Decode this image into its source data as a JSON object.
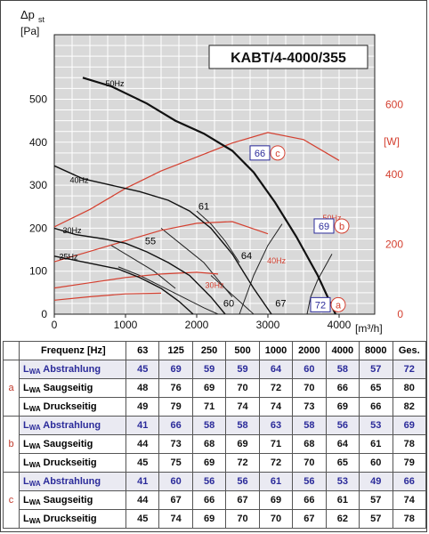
{
  "chart_data": {
    "type": "line",
    "title": "KABT/4-4000/355",
    "ylabel_left": "Δp",
    "ylabel_left_sub": "st",
    "ylabel_left_unit": "[Pa]",
    "ylabel_right_unit": "[W]",
    "xlabel_unit": "[m³/h]",
    "xlim": [
      0,
      4500
    ],
    "ylim_left": [
      0,
      650
    ],
    "ylim_right": [
      0,
      800
    ],
    "x_ticks": [
      "0",
      "1000",
      "2000",
      "3000",
      "4000"
    ],
    "y_ticks_left": [
      "0",
      "100",
      "200",
      "300",
      "400",
      "500"
    ],
    "y_ticks_right": [
      "0",
      "200",
      "400",
      "600"
    ],
    "grid": true,
    "pressure_series": [
      {
        "name": "50Hz",
        "x": [
          400,
          800,
          1300,
          1700,
          2100,
          2500,
          2800,
          3100,
          3400,
          3700,
          3950
        ],
        "y": [
          550,
          530,
          490,
          450,
          420,
          380,
          330,
          260,
          180,
          90,
          0
        ]
      },
      {
        "name": "40Hz",
        "x": [
          0,
          400,
          800,
          1200,
          1600,
          1900,
          2200,
          2500,
          2800,
          3050
        ],
        "y": [
          345,
          315,
          300,
          285,
          265,
          240,
          200,
          140,
          60,
          0
        ]
      },
      {
        "name": "30Hz",
        "x": [
          0,
          300,
          700,
          1000,
          1300,
          1600,
          1900,
          2200,
          2400
        ],
        "y": [
          200,
          185,
          175,
          165,
          145,
          120,
          90,
          40,
          0
        ]
      },
      {
        "name": "25Hz",
        "x": [
          0,
          300,
          600,
          900,
          1200,
          1500,
          1750,
          1950
        ],
        "y": [
          135,
          125,
          115,
          105,
          85,
          60,
          30,
          0
        ]
      }
    ],
    "power_series": [
      {
        "name": "50Hz",
        "x": [
          0,
          500,
          1000,
          1500,
          2000,
          2500,
          3000,
          3500,
          4000
        ],
        "y": [
          250,
          300,
          360,
          410,
          450,
          490,
          520,
          500,
          440
        ]
      },
      {
        "name": "40Hz",
        "x": [
          0,
          500,
          1000,
          1500,
          2000,
          2500,
          3000
        ],
        "y": [
          150,
          180,
          210,
          240,
          260,
          265,
          230
        ]
      },
      {
        "name": "30Hz",
        "x": [
          0,
          500,
          1000,
          1500,
          2000,
          2300
        ],
        "y": [
          75,
          90,
          105,
          115,
          120,
          115
        ]
      },
      {
        "name": "25Hz",
        "x": [
          0,
          500,
          1000,
          1500
        ],
        "y": [
          40,
          50,
          58,
          60
        ]
      }
    ],
    "sound_isolines": [
      {
        "label": "72",
        "x": [
          3550,
          3600,
          3700,
          3800,
          3900
        ],
        "y": [
          0,
          40,
          80,
          110,
          140
        ]
      },
      {
        "label": "69",
        "x": [
          2600,
          2800,
          3000,
          3200
        ],
        "y": [
          0,
          90,
          160,
          210
        ]
      },
      {
        "label": "67",
        "x": [
          2200,
          2400,
          2600,
          2800,
          2900
        ],
        "y": [
          90,
          60,
          30,
          0,
          0
        ]
      },
      {
        "label": "64",
        "x": [
          1500,
          1800,
          2100,
          2300,
          2500
        ],
        "y": [
          200,
          160,
          120,
          80,
          40
        ]
      },
      {
        "label": "61",
        "x": [
          2000,
          2200,
          2400,
          2600
        ],
        "y": [
          240,
          210,
          170,
          120
        ]
      },
      {
        "label": "60",
        "x": [
          900,
          1200,
          1500,
          1800,
          2100,
          2300
        ],
        "y": [
          110,
          90,
          65,
          40,
          15,
          0
        ]
      },
      {
        "label": "55",
        "x": [
          800,
          1100,
          1400,
          1700
        ],
        "y": [
          160,
          130,
          100,
          60
        ]
      }
    ],
    "curve_labels": [
      {
        "text": "50Hz",
        "x": 850,
        "y": 530,
        "color": "#000000"
      },
      {
        "text": "40Hz",
        "x": 350,
        "y": 305,
        "color": "#000000"
      },
      {
        "text": "30Hz",
        "x": 250,
        "y": 188,
        "color": "#000000"
      },
      {
        "text": "25Hz",
        "x": 200,
        "y": 127,
        "color": "#000000"
      },
      {
        "text": "61",
        "x": 2100,
        "y": 243,
        "color": "#000000"
      },
      {
        "text": "55",
        "x": 1350,
        "y": 162,
        "color": "#000000"
      },
      {
        "text": "64",
        "x": 2700,
        "y": 128,
        "color": "#000000"
      },
      {
        "text": "60",
        "x": 2450,
        "y": 18,
        "color": "#000000"
      },
      {
        "text": "67",
        "x": 3180,
        "y": 18,
        "color": "#000000"
      },
      {
        "text": "50Hz",
        "x": 3900,
        "y": 268,
        "color": "#d44030"
      },
      {
        "text": "40Hz",
        "x": 3120,
        "y": 145,
        "color": "#d44030"
      },
      {
        "text": "30Hz",
        "x": 2250,
        "y": 75,
        "color": "#d44030"
      }
    ],
    "op_points": [
      {
        "num": "66",
        "letter": "c",
        "x": 2900,
        "y": 375
      },
      {
        "num": "69",
        "letter": "b",
        "x": 3800,
        "y": 205
      },
      {
        "num": "72",
        "letter": "a",
        "x": 3750,
        "y": 22
      }
    ],
    "colors": {
      "pressure": "#111111",
      "power": "#d44030",
      "grid": "#ffffff",
      "bg": "#d9d9d9",
      "isoline": "#222222"
    }
  },
  "table": {
    "header_label": "Frequenz",
    "header_unit": "[Hz]",
    "columns": [
      "63",
      "125",
      "250",
      "500",
      "1000",
      "2000",
      "4000",
      "8000",
      "Ges."
    ],
    "groups": [
      {
        "id": "a",
        "rows": [
          {
            "prefix": "L",
            "sub": "WA",
            "label": "Abstrahlung",
            "blue": true,
            "values": [
              "45",
              "69",
              "59",
              "59",
              "64",
              "60",
              "58",
              "57",
              "72"
            ]
          },
          {
            "prefix": "L",
            "sub": "WA",
            "label": "Saugseitig",
            "blue": false,
            "values": [
              "48",
              "76",
              "69",
              "70",
              "72",
              "70",
              "66",
              "65",
              "80"
            ]
          },
          {
            "prefix": "L",
            "sub": "WA",
            "label": "Druckseitig",
            "blue": false,
            "values": [
              "49",
              "79",
              "71",
              "74",
              "74",
              "73",
              "69",
              "66",
              "82"
            ]
          }
        ]
      },
      {
        "id": "b",
        "rows": [
          {
            "prefix": "L",
            "sub": "WA",
            "label": "Abstrahlung",
            "blue": true,
            "values": [
              "41",
              "66",
              "58",
              "58",
              "63",
              "58",
              "56",
              "53",
              "69"
            ]
          },
          {
            "prefix": "L",
            "sub": "WA",
            "label": "Saugseitig",
            "blue": false,
            "values": [
              "44",
              "73",
              "68",
              "69",
              "71",
              "68",
              "64",
              "61",
              "78"
            ]
          },
          {
            "prefix": "L",
            "sub": "WA",
            "label": "Druckseitig",
            "blue": false,
            "values": [
              "45",
              "75",
              "69",
              "72",
              "72",
              "70",
              "65",
              "60",
              "79"
            ]
          }
        ]
      },
      {
        "id": "c",
        "rows": [
          {
            "prefix": "L",
            "sub": "WA",
            "label": "Abstrahlung",
            "blue": true,
            "values": [
              "41",
              "60",
              "56",
              "56",
              "61",
              "56",
              "53",
              "49",
              "66"
            ]
          },
          {
            "prefix": "L",
            "sub": "WA",
            "label": "Saugseitig",
            "blue": false,
            "values": [
              "44",
              "67",
              "66",
              "67",
              "69",
              "66",
              "61",
              "57",
              "74"
            ]
          },
          {
            "prefix": "L",
            "sub": "WA",
            "label": "Druckseitig",
            "blue": false,
            "values": [
              "45",
              "74",
              "69",
              "70",
              "70",
              "67",
              "62",
              "57",
              "78"
            ]
          }
        ]
      }
    ]
  }
}
